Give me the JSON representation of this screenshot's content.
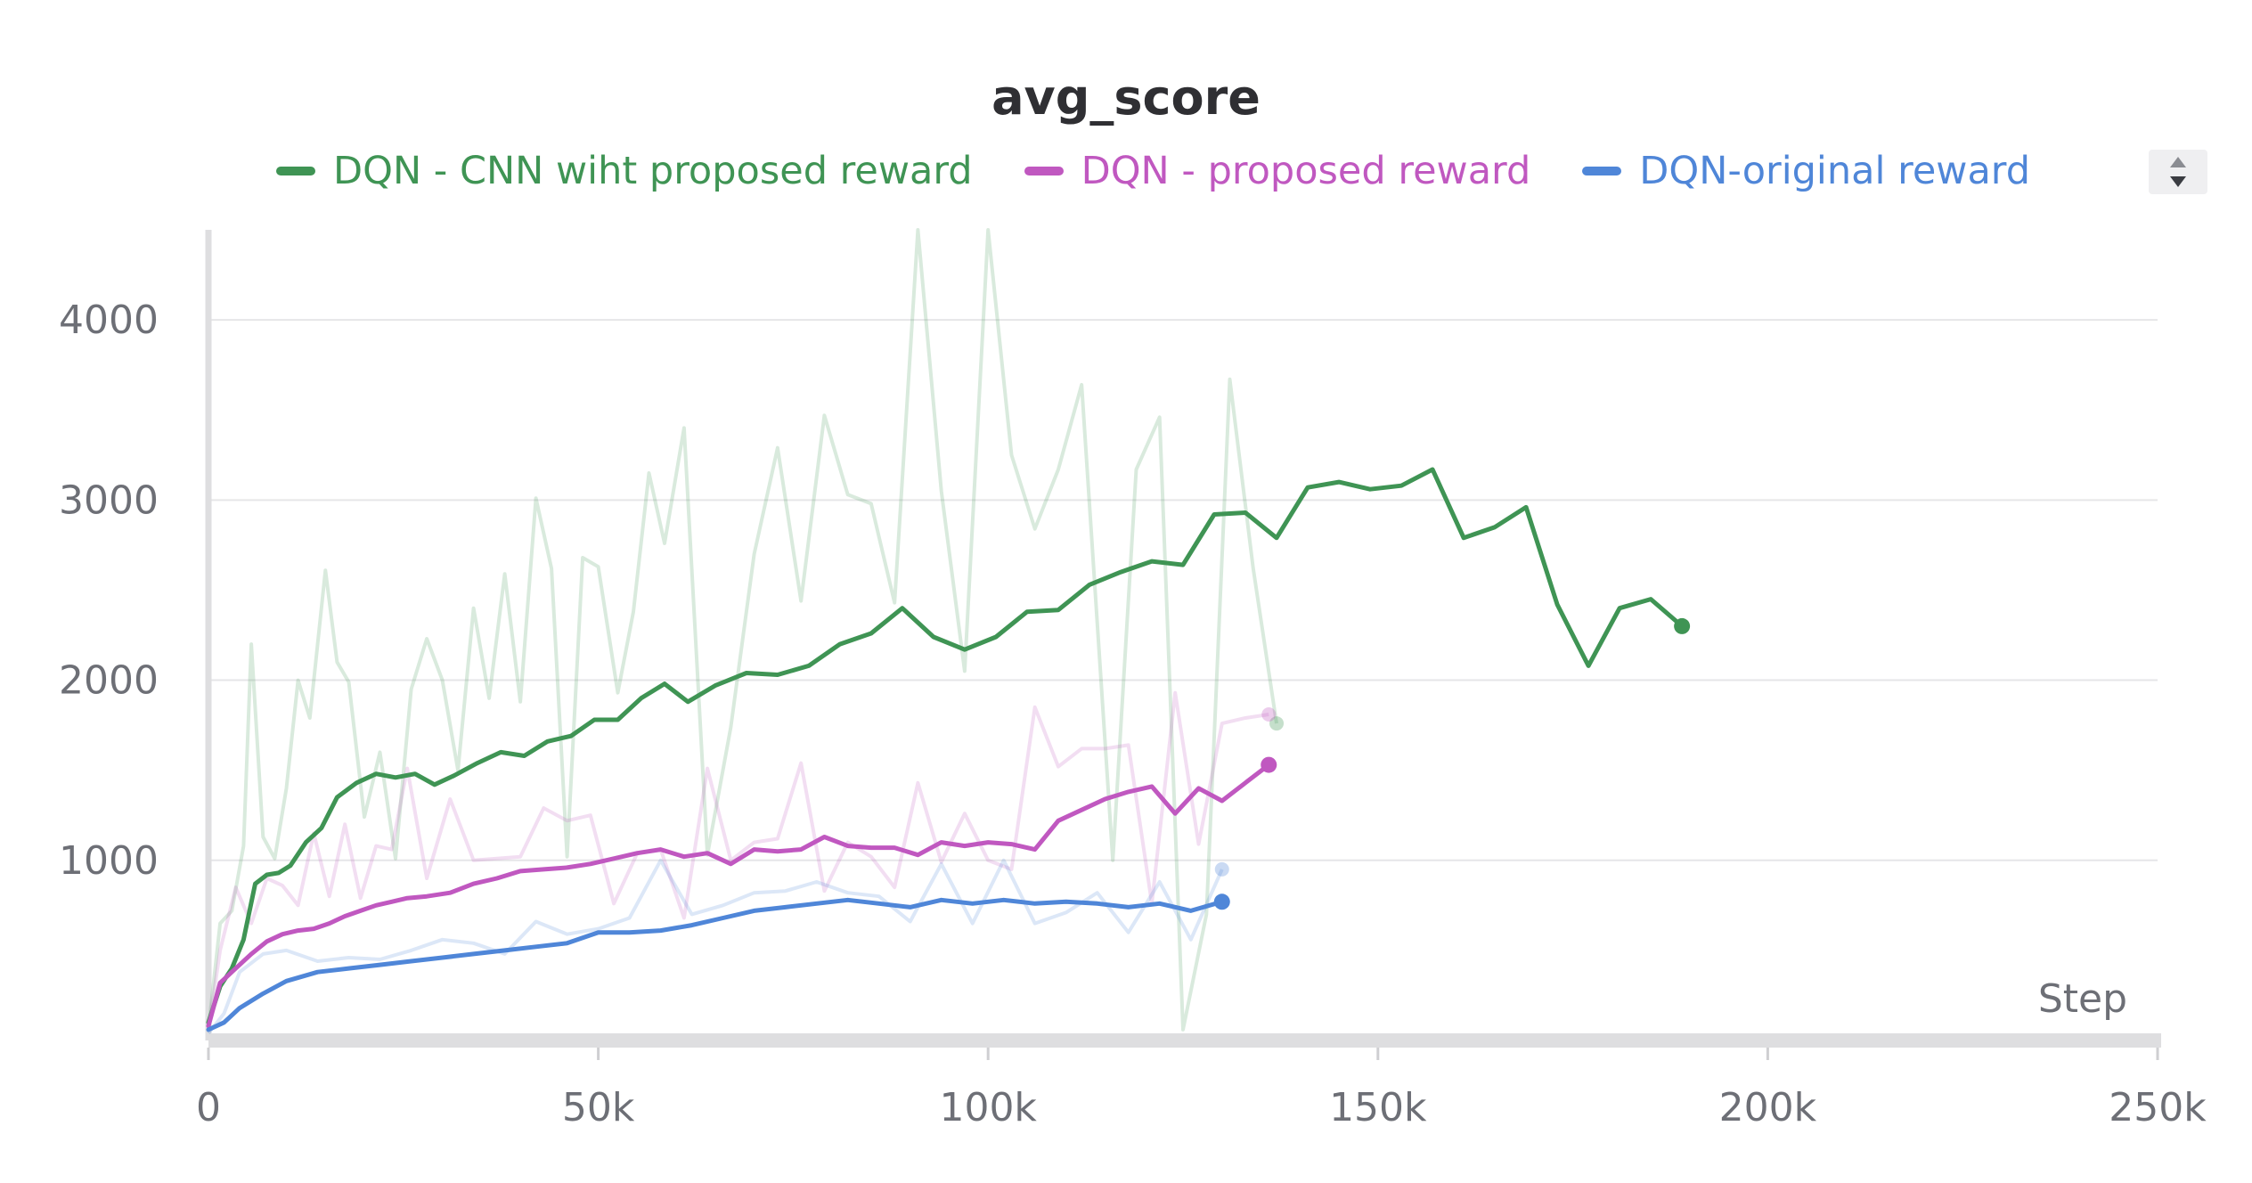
{
  "chart_data": {
    "type": "line",
    "title": "avg_score",
    "xlabel": "Step",
    "ylabel": "",
    "xlim": [
      0,
      250000
    ],
    "ylim": [
      0,
      4500
    ],
    "x_ticks": [
      0,
      50000,
      100000,
      150000,
      200000,
      250000
    ],
    "x_tick_labels": [
      "0",
      "50k",
      "100k",
      "150k",
      "200k",
      "250k"
    ],
    "y_ticks": [
      1000,
      2000,
      3000,
      4000
    ],
    "y_tick_labels": [
      "1000",
      "2000",
      "3000",
      "4000"
    ],
    "grid": true,
    "legend_position": "top",
    "series": [
      {
        "name": "DQN - CNN wiht proposed reward",
        "color": "#3f9454",
        "smoothed": [
          [
            0,
            100
          ],
          [
            1500,
            300
          ],
          [
            3000,
            400
          ],
          [
            4500,
            560
          ],
          [
            6000,
            870
          ],
          [
            7500,
            920
          ],
          [
            9000,
            930
          ],
          [
            10500,
            970
          ],
          [
            12500,
            1100
          ],
          [
            14500,
            1180
          ],
          [
            16500,
            1350
          ],
          [
            19000,
            1430
          ],
          [
            21500,
            1480
          ],
          [
            24000,
            1460
          ],
          [
            26500,
            1480
          ],
          [
            29000,
            1420
          ],
          [
            31500,
            1470
          ],
          [
            34500,
            1540
          ],
          [
            37500,
            1600
          ],
          [
            40500,
            1580
          ],
          [
            43500,
            1660
          ],
          [
            46500,
            1690
          ],
          [
            49500,
            1780
          ],
          [
            52500,
            1780
          ],
          [
            55500,
            1900
          ],
          [
            58500,
            1980
          ],
          [
            61500,
            1880
          ],
          [
            65000,
            1970
          ],
          [
            69000,
            2040
          ],
          [
            73000,
            2030
          ],
          [
            77000,
            2080
          ],
          [
            81000,
            2200
          ],
          [
            85000,
            2260
          ],
          [
            89000,
            2400
          ],
          [
            93000,
            2240
          ],
          [
            97000,
            2170
          ],
          [
            101000,
            2240
          ],
          [
            105000,
            2380
          ],
          [
            109000,
            2390
          ],
          [
            113000,
            2530
          ],
          [
            117000,
            2600
          ],
          [
            121000,
            2660
          ],
          [
            125000,
            2640
          ],
          [
            129000,
            2920
          ],
          [
            133000,
            2930
          ],
          [
            137000,
            2790
          ],
          [
            141000,
            3070
          ],
          [
            145000,
            3100
          ],
          [
            149000,
            3060
          ],
          [
            153000,
            3080
          ],
          [
            157000,
            3170
          ],
          [
            161000,
            2790
          ],
          [
            165000,
            2850
          ],
          [
            169000,
            2960
          ],
          [
            173000,
            2420
          ],
          [
            177000,
            2080
          ],
          [
            181000,
            2400
          ],
          [
            185000,
            2450
          ],
          [
            189000,
            2300
          ]
        ],
        "raw": [
          [
            0,
            60
          ],
          [
            1500,
            650
          ],
          [
            3000,
            720
          ],
          [
            4500,
            1080
          ],
          [
            5500,
            2200
          ],
          [
            7000,
            1130
          ],
          [
            8500,
            1010
          ],
          [
            10000,
            1400
          ],
          [
            11500,
            2000
          ],
          [
            13000,
            1790
          ],
          [
            15000,
            2610
          ],
          [
            16500,
            2100
          ],
          [
            18000,
            1990
          ],
          [
            20000,
            1240
          ],
          [
            22000,
            1600
          ],
          [
            24000,
            1010
          ],
          [
            26000,
            1950
          ],
          [
            28000,
            2230
          ],
          [
            30000,
            2000
          ],
          [
            32000,
            1500
          ],
          [
            34000,
            2400
          ],
          [
            36000,
            1900
          ],
          [
            38000,
            2590
          ],
          [
            40000,
            1880
          ],
          [
            42000,
            3010
          ],
          [
            44000,
            2620
          ],
          [
            46000,
            1020
          ],
          [
            48000,
            2680
          ],
          [
            50000,
            2630
          ],
          [
            52500,
            1930
          ],
          [
            54500,
            2380
          ],
          [
            56500,
            3150
          ],
          [
            58500,
            2760
          ],
          [
            61000,
            3400
          ],
          [
            64000,
            1030
          ],
          [
            67000,
            1740
          ],
          [
            70000,
            2700
          ],
          [
            73000,
            3290
          ],
          [
            76000,
            2440
          ],
          [
            79000,
            3470
          ],
          [
            82000,
            3030
          ],
          [
            85000,
            2980
          ],
          [
            88000,
            2430
          ],
          [
            91000,
            4500
          ],
          [
            94000,
            3050
          ],
          [
            97000,
            2050
          ],
          [
            100000,
            4500
          ],
          [
            103000,
            3250
          ],
          [
            106000,
            2840
          ],
          [
            109000,
            3170
          ],
          [
            112000,
            3640
          ],
          [
            116000,
            1000
          ],
          [
            119000,
            3170
          ],
          [
            122000,
            3460
          ],
          [
            125000,
            60
          ],
          [
            128000,
            700
          ],
          [
            131000,
            3670
          ],
          [
            134000,
            2620
          ],
          [
            137000,
            1760
          ]
        ]
      },
      {
        "name": "DQN - proposed reward",
        "color": "#c058c0",
        "smoothed": [
          [
            0,
            80
          ],
          [
            1500,
            320
          ],
          [
            3500,
            400
          ],
          [
            5500,
            480
          ],
          [
            7500,
            550
          ],
          [
            9500,
            590
          ],
          [
            11500,
            610
          ],
          [
            13500,
            620
          ],
          [
            15500,
            650
          ],
          [
            17500,
            690
          ],
          [
            19500,
            720
          ],
          [
            21500,
            750
          ],
          [
            23500,
            770
          ],
          [
            25500,
            790
          ],
          [
            28000,
            800
          ],
          [
            31000,
            820
          ],
          [
            34000,
            870
          ],
          [
            37000,
            900
          ],
          [
            40000,
            940
          ],
          [
            43000,
            950
          ],
          [
            46000,
            960
          ],
          [
            49000,
            980
          ],
          [
            52000,
            1010
          ],
          [
            55000,
            1040
          ],
          [
            58000,
            1060
          ],
          [
            61000,
            1020
          ],
          [
            64000,
            1040
          ],
          [
            67000,
            980
          ],
          [
            70000,
            1060
          ],
          [
            73000,
            1050
          ],
          [
            76000,
            1060
          ],
          [
            79000,
            1130
          ],
          [
            82000,
            1080
          ],
          [
            85000,
            1070
          ],
          [
            88000,
            1070
          ],
          [
            91000,
            1030
          ],
          [
            94000,
            1100
          ],
          [
            97000,
            1080
          ],
          [
            100000,
            1100
          ],
          [
            103000,
            1090
          ],
          [
            106000,
            1060
          ],
          [
            109000,
            1220
          ],
          [
            112000,
            1280
          ],
          [
            115000,
            1340
          ],
          [
            118000,
            1380
          ],
          [
            121000,
            1410
          ],
          [
            124000,
            1260
          ],
          [
            127000,
            1400
          ],
          [
            130000,
            1330
          ],
          [
            133000,
            1430
          ],
          [
            136000,
            1530
          ]
        ],
        "raw": [
          [
            0,
            60
          ],
          [
            1500,
            500
          ],
          [
            3500,
            850
          ],
          [
            5500,
            650
          ],
          [
            7500,
            900
          ],
          [
            9500,
            860
          ],
          [
            11500,
            750
          ],
          [
            13500,
            1150
          ],
          [
            15500,
            800
          ],
          [
            17500,
            1200
          ],
          [
            19500,
            790
          ],
          [
            21500,
            1080
          ],
          [
            23500,
            1060
          ],
          [
            25500,
            1510
          ],
          [
            28000,
            900
          ],
          [
            31000,
            1340
          ],
          [
            34000,
            1000
          ],
          [
            37000,
            1010
          ],
          [
            40000,
            1020
          ],
          [
            43000,
            1290
          ],
          [
            46000,
            1220
          ],
          [
            49000,
            1250
          ],
          [
            52000,
            760
          ],
          [
            55000,
            1040
          ],
          [
            58000,
            1060
          ],
          [
            61000,
            680
          ],
          [
            64000,
            1510
          ],
          [
            67000,
            1000
          ],
          [
            70000,
            1100
          ],
          [
            73000,
            1120
          ],
          [
            76000,
            1540
          ],
          [
            79000,
            830
          ],
          [
            82000,
            1100
          ],
          [
            85000,
            1020
          ],
          [
            88000,
            850
          ],
          [
            91000,
            1430
          ],
          [
            94000,
            990
          ],
          [
            97000,
            1260
          ],
          [
            100000,
            1000
          ],
          [
            103000,
            950
          ],
          [
            106000,
            1850
          ],
          [
            109000,
            1520
          ],
          [
            112000,
            1620
          ],
          [
            115000,
            1620
          ],
          [
            118000,
            1640
          ],
          [
            121000,
            760
          ],
          [
            124000,
            1930
          ],
          [
            127000,
            1090
          ],
          [
            130000,
            1760
          ],
          [
            133000,
            1790
          ],
          [
            136000,
            1810
          ]
        ]
      },
      {
        "name": "DQN-original reward",
        "color": "#4f86d8",
        "smoothed": [
          [
            0,
            60
          ],
          [
            2000,
            100
          ],
          [
            4000,
            180
          ],
          [
            7000,
            260
          ],
          [
            10000,
            330
          ],
          [
            14000,
            380
          ],
          [
            18000,
            400
          ],
          [
            22000,
            420
          ],
          [
            26000,
            440
          ],
          [
            30000,
            460
          ],
          [
            34000,
            480
          ],
          [
            38000,
            500
          ],
          [
            42000,
            520
          ],
          [
            46000,
            540
          ],
          [
            50000,
            600
          ],
          [
            54000,
            600
          ],
          [
            58000,
            610
          ],
          [
            62000,
            640
          ],
          [
            66000,
            680
          ],
          [
            70000,
            720
          ],
          [
            74000,
            740
          ],
          [
            78000,
            760
          ],
          [
            82000,
            780
          ],
          [
            86000,
            760
          ],
          [
            90000,
            740
          ],
          [
            94000,
            780
          ],
          [
            98000,
            760
          ],
          [
            102000,
            780
          ],
          [
            106000,
            760
          ],
          [
            110000,
            770
          ],
          [
            114000,
            760
          ],
          [
            118000,
            740
          ],
          [
            122000,
            760
          ],
          [
            126000,
            720
          ],
          [
            130000,
            770
          ]
        ],
        "raw": [
          [
            0,
            40
          ],
          [
            2000,
            150
          ],
          [
            4000,
            380
          ],
          [
            7000,
            480
          ],
          [
            10000,
            500
          ],
          [
            14000,
            440
          ],
          [
            18000,
            460
          ],
          [
            22000,
            450
          ],
          [
            26000,
            500
          ],
          [
            30000,
            560
          ],
          [
            34000,
            540
          ],
          [
            38000,
            480
          ],
          [
            42000,
            660
          ],
          [
            46000,
            590
          ],
          [
            50000,
            620
          ],
          [
            54000,
            680
          ],
          [
            58000,
            1000
          ],
          [
            62000,
            700
          ],
          [
            66000,
            750
          ],
          [
            70000,
            820
          ],
          [
            74000,
            830
          ],
          [
            78000,
            880
          ],
          [
            82000,
            820
          ],
          [
            86000,
            800
          ],
          [
            90000,
            660
          ],
          [
            94000,
            980
          ],
          [
            98000,
            650
          ],
          [
            102000,
            1000
          ],
          [
            106000,
            650
          ],
          [
            110000,
            710
          ],
          [
            114000,
            820
          ],
          [
            118000,
            600
          ],
          [
            122000,
            880
          ],
          [
            126000,
            560
          ],
          [
            130000,
            950
          ]
        ]
      }
    ]
  }
}
